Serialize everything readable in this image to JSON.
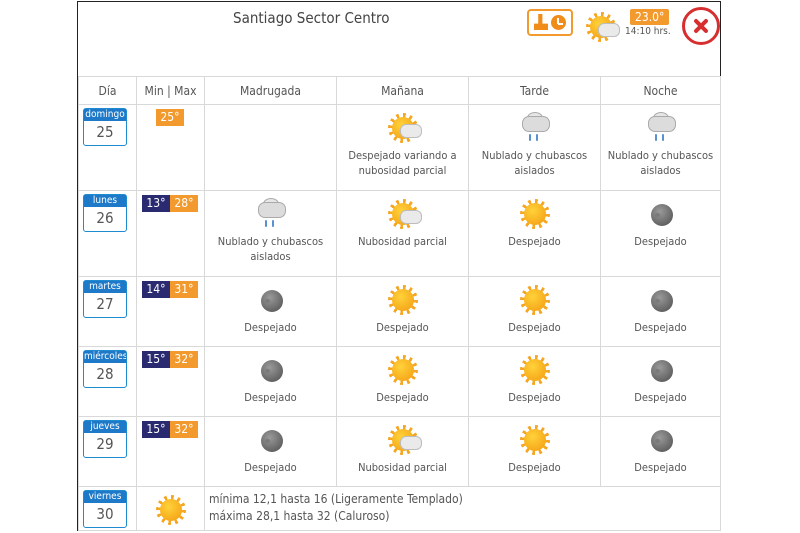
{
  "header": {
    "city": "Santiago Sector Centro",
    "current_temp": "23.0°",
    "current_time": "14:10 hrs."
  },
  "columns": [
    "Día",
    "Min | Max",
    "Madrugada",
    "Mañana",
    "Tarde",
    "Noche"
  ],
  "days": [
    {
      "name": "domingo",
      "num": "25",
      "min": "",
      "max": "25°",
      "periods": [
        {
          "icon": "",
          "text": ""
        },
        {
          "icon": "partly-cloudy",
          "text": "Despejado variando a nubosidad parcial"
        },
        {
          "icon": "rain-showers",
          "text": "Nublado y chubascos aislados"
        },
        {
          "icon": "rain-showers",
          "text": "Nublado y chubascos aislados"
        }
      ]
    },
    {
      "name": "lunes",
      "num": "26",
      "min": "13°",
      "max": "28°",
      "periods": [
        {
          "icon": "rain-showers",
          "text": "Nublado y chubascos aislados"
        },
        {
          "icon": "partly-cloudy",
          "text": "Nubosidad parcial"
        },
        {
          "icon": "sun",
          "text": "Despejado"
        },
        {
          "icon": "moon",
          "text": "Despejado"
        }
      ]
    },
    {
      "name": "martes",
      "num": "27",
      "min": "14°",
      "max": "31°",
      "periods": [
        {
          "icon": "moon",
          "text": "Despejado"
        },
        {
          "icon": "sun",
          "text": "Despejado"
        },
        {
          "icon": "sun",
          "text": "Despejado"
        },
        {
          "icon": "moon",
          "text": "Despejado"
        }
      ]
    },
    {
      "name": "miércoles",
      "num": "28",
      "min": "15°",
      "max": "32°",
      "periods": [
        {
          "icon": "moon",
          "text": "Despejado"
        },
        {
          "icon": "sun",
          "text": "Despejado"
        },
        {
          "icon": "sun",
          "text": "Despejado"
        },
        {
          "icon": "moon",
          "text": "Despejado"
        }
      ]
    },
    {
      "name": "jueves",
      "num": "29",
      "min": "15°",
      "max": "32°",
      "periods": [
        {
          "icon": "moon",
          "text": "Despejado"
        },
        {
          "icon": "partly-cloudy",
          "text": "Nubosidad parcial"
        },
        {
          "icon": "sun",
          "text": "Despejado"
        },
        {
          "icon": "moon",
          "text": "Despejado"
        }
      ]
    }
  ],
  "last_day": {
    "name": "viernes",
    "num": "30",
    "icon": "sun",
    "summary_min": "mínima 12,1 hasta 16 (Ligeramente Templado)",
    "summary_max": "máxima 28,1 hasta 32 (Caluroso)"
  },
  "colors": {
    "accent_orange": "#f29a2e",
    "day_blue": "#1e7ac9",
    "min_navy": "#2a2a70",
    "close_red": "#d72f2f"
  }
}
